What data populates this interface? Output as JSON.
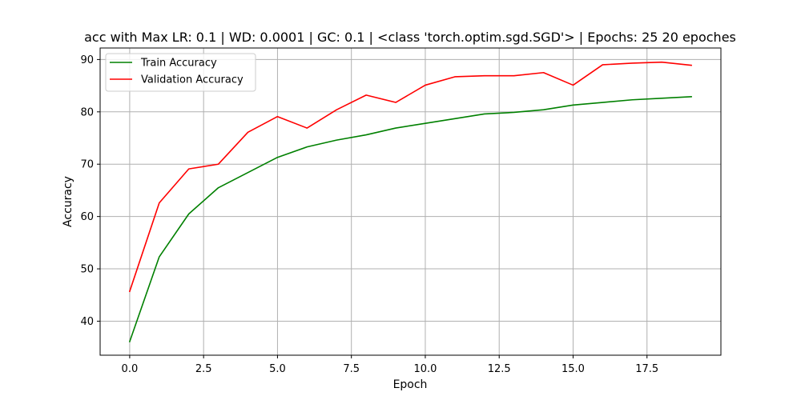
{
  "chart_data": {
    "type": "line",
    "title": "acc with Max LR: 0.1 | WD: 0.0001 | GC: 0.1 | <class 'torch.optim.sgd.SGD'> | Epochs: 25 20 epoches",
    "xlabel": "Epoch",
    "ylabel": "Accuracy",
    "xlim": [
      -1,
      20
    ],
    "ylim": [
      33.5,
      92.2
    ],
    "grid": true,
    "legend_position": "top-left",
    "x": [
      0,
      1,
      2,
      3,
      4,
      5,
      6,
      7,
      8,
      9,
      10,
      11,
      12,
      13,
      14,
      15,
      16,
      17,
      18,
      19
    ],
    "xticks": [
      0.0,
      2.5,
      5.0,
      7.5,
      10.0,
      12.5,
      15.0,
      17.5
    ],
    "xtick_labels": [
      "0.0",
      "2.5",
      "5.0",
      "7.5",
      "10.0",
      "12.5",
      "15.0",
      "17.5"
    ],
    "yticks": [
      40,
      50,
      60,
      70,
      80,
      90
    ],
    "ytick_labels": [
      "40",
      "50",
      "60",
      "70",
      "80",
      "90"
    ],
    "series": [
      {
        "name": "Train Accuracy",
        "color": "#008000",
        "values": [
          36.1,
          52.3,
          60.5,
          65.5,
          68.4,
          71.3,
          73.3,
          74.6,
          75.6,
          76.9,
          77.8,
          78.7,
          79.6,
          79.9,
          80.4,
          81.3,
          81.8,
          82.3,
          82.6,
          82.9
        ]
      },
      {
        "name": "Validation Accuracy",
        "color": "#ff0000",
        "values": [
          45.7,
          62.6,
          69.1,
          70.0,
          76.1,
          79.1,
          76.9,
          80.4,
          83.2,
          81.8,
          85.1,
          86.7,
          86.9,
          86.9,
          87.5,
          85.1,
          89.0,
          89.3,
          89.5,
          88.9
        ]
      }
    ]
  }
}
